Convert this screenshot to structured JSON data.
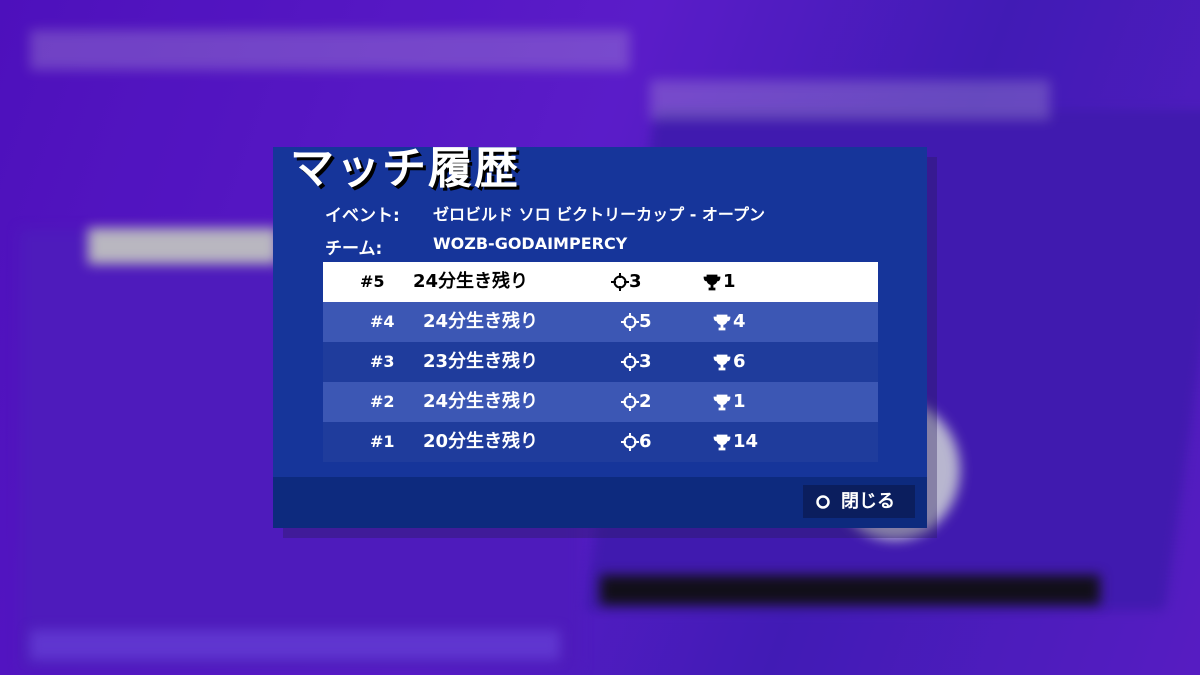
{
  "dialog": {
    "title": "マッチ履歴",
    "event_label": "イベント:",
    "event_value": "ゼロビルド ソロ ビクトリーカップ - オープン",
    "team_label": "チーム:",
    "team_value": "WOZB-GODAIMPERCY",
    "matches": [
      {
        "rank": "#5",
        "survived": "24分生き残り",
        "eliminations": 3,
        "placement": 1
      },
      {
        "rank": "#4",
        "survived": "24分生き残り",
        "eliminations": 5,
        "placement": 4
      },
      {
        "rank": "#3",
        "survived": "23分生き残り",
        "eliminations": 3,
        "placement": 6
      },
      {
        "rank": "#2",
        "survived": "24分生き残り",
        "eliminations": 2,
        "placement": 1
      },
      {
        "rank": "#1",
        "survived": "20分生き残り",
        "eliminations": 6,
        "placement": 14
      }
    ],
    "close": "閉じる"
  }
}
